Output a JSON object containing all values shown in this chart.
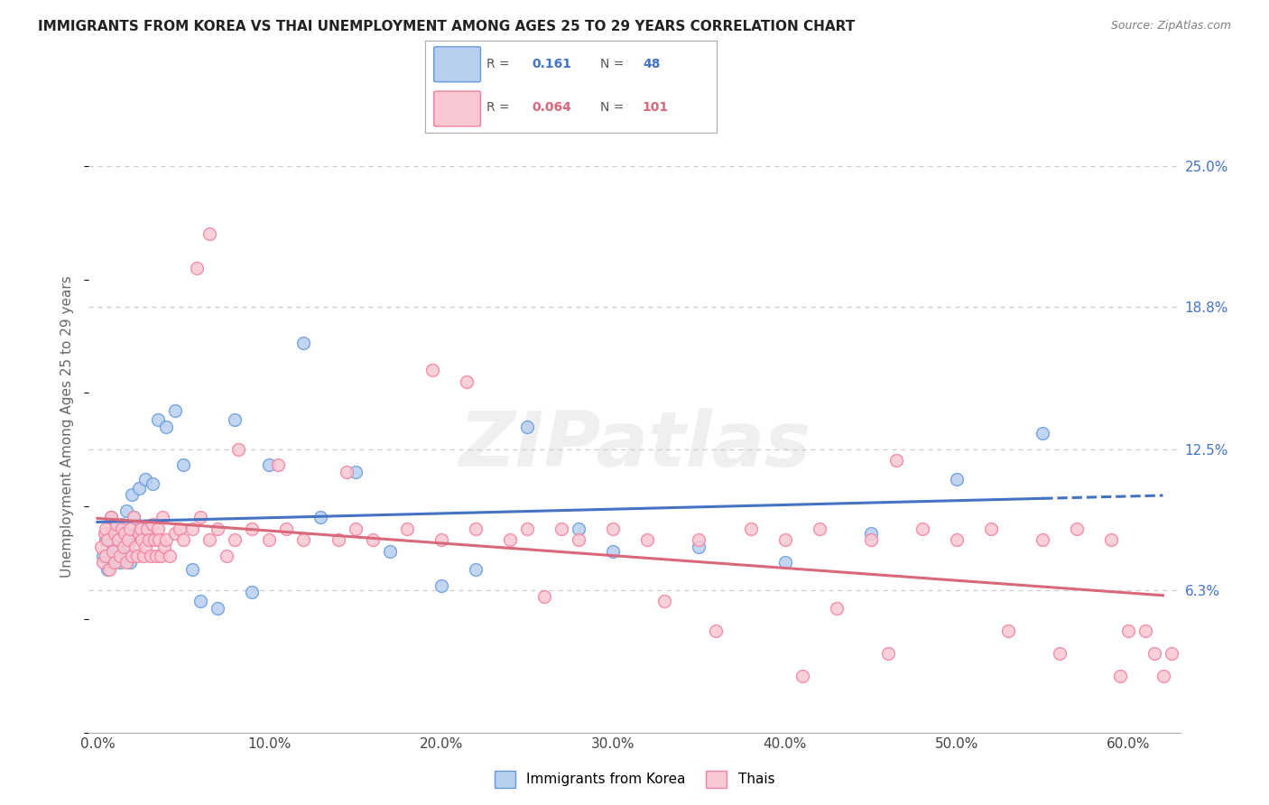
{
  "title": "IMMIGRANTS FROM KOREA VS THAI UNEMPLOYMENT AMONG AGES 25 TO 29 YEARS CORRELATION CHART",
  "source": "Source: ZipAtlas.com",
  "ylabel": "Unemployment Among Ages 25 to 29 years",
  "xticklabels": [
    "0.0%",
    "10.0%",
    "20.0%",
    "30.0%",
    "40.0%",
    "50.0%",
    "60.0%"
  ],
  "xticks": [
    0.0,
    10.0,
    20.0,
    30.0,
    40.0,
    50.0,
    60.0
  ],
  "yticklabels_right": [
    "6.3%",
    "12.5%",
    "18.8%",
    "25.0%"
  ],
  "yticks_right": [
    6.3,
    12.5,
    18.8,
    25.0
  ],
  "ylim": [
    0,
    27
  ],
  "xlim": [
    -0.5,
    63
  ],
  "korea_fill_color": "#b8cff0",
  "thai_fill_color": "#fac8d2",
  "korea_edge_color": "#6699dd",
  "thai_edge_color": "#f080a0",
  "trend_korea_color": "#4472c4",
  "trend_thai_color": "#d9687a",
  "legend_korea_label": "Immigrants from Korea",
  "legend_thai_label": "Thais",
  "watermark_text": "ZIPatlas",
  "grid_color": "#cccccc",
  "title_color": "#222222",
  "right_axis_color": "#4472c4",
  "korea_x": [
    0.3,
    0.5,
    0.6,
    0.7,
    0.8,
    0.9,
    1.0,
    1.1,
    1.2,
    1.3,
    1.4,
    1.5,
    1.6,
    1.7,
    1.8,
    1.9,
    2.0,
    2.1,
    2.2,
    2.4,
    2.6,
    2.8,
    3.0,
    3.2,
    3.5,
    4.0,
    4.5,
    5.0,
    5.5,
    6.0,
    7.0,
    8.0,
    9.0,
    10.0,
    12.0,
    13.0,
    15.0,
    17.0,
    20.0,
    22.0,
    25.0,
    28.0,
    30.0,
    35.0,
    40.0,
    45.0,
    50.0,
    55.0
  ],
  "korea_y": [
    7.8,
    8.5,
    7.2,
    8.8,
    9.5,
    7.5,
    8.2,
    9.0,
    8.0,
    7.5,
    9.2,
    8.5,
    7.8,
    9.8,
    8.3,
    7.5,
    10.5,
    9.5,
    8.8,
    10.8,
    9.0,
    11.2,
    8.8,
    11.0,
    13.8,
    13.5,
    14.2,
    11.8,
    7.2,
    5.8,
    5.5,
    13.8,
    6.2,
    11.8,
    17.2,
    9.5,
    11.5,
    8.0,
    6.5,
    7.2,
    13.5,
    9.0,
    8.0,
    8.2,
    7.5,
    8.8,
    11.2,
    13.2
  ],
  "thai_x": [
    0.2,
    0.3,
    0.4,
    0.5,
    0.5,
    0.6,
    0.7,
    0.8,
    0.9,
    1.0,
    1.0,
    1.1,
    1.2,
    1.3,
    1.4,
    1.5,
    1.6,
    1.7,
    1.8,
    1.9,
    2.0,
    2.1,
    2.2,
    2.3,
    2.4,
    2.5,
    2.6,
    2.7,
    2.8,
    2.9,
    3.0,
    3.1,
    3.2,
    3.3,
    3.4,
    3.5,
    3.6,
    3.7,
    3.8,
    3.9,
    4.0,
    4.2,
    4.5,
    4.8,
    5.0,
    5.5,
    6.0,
    6.5,
    7.0,
    7.5,
    8.0,
    9.0,
    10.0,
    11.0,
    12.0,
    14.0,
    15.0,
    16.0,
    18.0,
    20.0,
    22.0,
    24.0,
    25.0,
    27.0,
    28.0,
    30.0,
    32.0,
    33.0,
    35.0,
    38.0,
    40.0,
    42.0,
    43.0,
    45.0,
    46.0,
    48.0,
    50.0,
    52.0,
    55.0,
    57.0,
    59.0,
    19.5,
    6.5,
    5.8,
    8.2,
    10.5,
    14.5,
    21.5,
    26.0,
    36.0,
    41.0,
    46.5,
    53.0,
    56.0,
    59.5,
    60.0,
    61.0,
    61.5,
    62.0,
    62.5
  ],
  "thai_y": [
    8.2,
    7.5,
    8.8,
    9.0,
    7.8,
    8.5,
    7.2,
    9.5,
    8.0,
    8.8,
    7.5,
    9.2,
    8.5,
    7.8,
    9.0,
    8.2,
    8.8,
    7.5,
    8.5,
    9.0,
    7.8,
    9.5,
    8.2,
    7.8,
    8.8,
    9.0,
    8.5,
    7.8,
    8.2,
    9.0,
    8.5,
    7.8,
    9.2,
    8.5,
    7.8,
    9.0,
    8.5,
    7.8,
    9.5,
    8.2,
    8.5,
    7.8,
    8.8,
    9.0,
    8.5,
    9.0,
    9.5,
    8.5,
    9.0,
    7.8,
    8.5,
    9.0,
    8.5,
    9.0,
    8.5,
    8.5,
    9.0,
    8.5,
    9.0,
    8.5,
    9.0,
    8.5,
    9.0,
    9.0,
    8.5,
    9.0,
    8.5,
    5.8,
    8.5,
    9.0,
    8.5,
    9.0,
    5.5,
    8.5,
    3.5,
    9.0,
    8.5,
    9.0,
    8.5,
    9.0,
    8.5,
    16.0,
    22.0,
    20.5,
    12.5,
    11.8,
    11.5,
    15.5,
    6.0,
    4.5,
    2.5,
    12.0,
    4.5,
    3.5,
    2.5,
    4.5,
    4.5,
    3.5,
    2.5,
    3.5
  ]
}
